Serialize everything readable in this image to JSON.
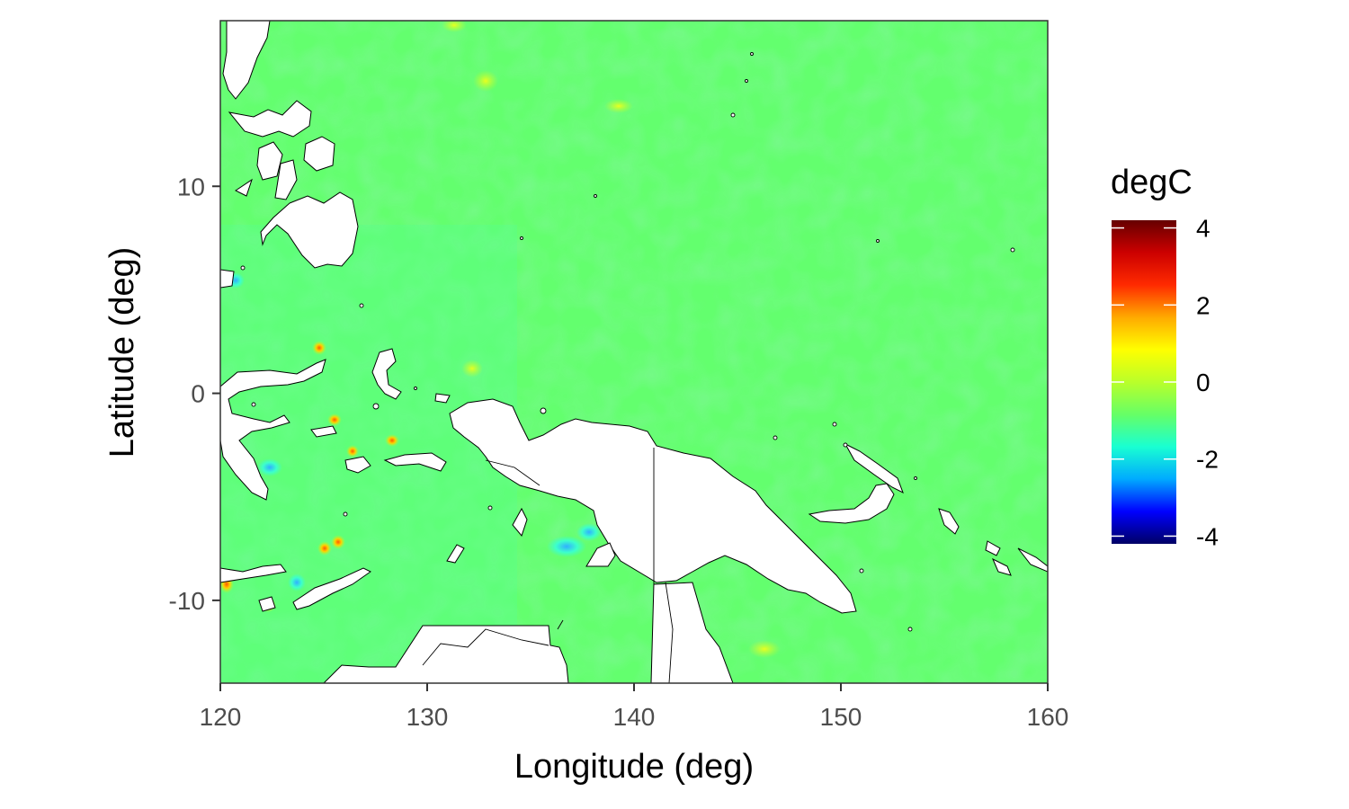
{
  "chart_data": {
    "type": "heatmap",
    "title": "",
    "xlabel": "Longitude (deg)",
    "ylabel": "Latitude (deg)",
    "xlim": [
      120,
      160
    ],
    "ylim": [
      -14,
      18
    ],
    "x_ticks": [
      120,
      130,
      140,
      150,
      160
    ],
    "x_tick_labels": [
      "120",
      "130",
      "140",
      "150",
      "160"
    ],
    "y_ticks": [
      -10,
      0,
      10
    ],
    "y_tick_labels": [
      "-10",
      "0",
      "10"
    ],
    "grid": false,
    "legend": {
      "title": "degC",
      "position": "right",
      "range": [
        -4.2,
        4.2
      ],
      "ticks": [
        4,
        2,
        0,
        -2,
        -4
      ],
      "tick_labels": [
        "4",
        "2",
        "0",
        "-2",
        "-4"
      ],
      "palette": [
        "#000066",
        "#0000ff",
        "#00aaff",
        "#19ffd2",
        "#66ff66",
        "#b9ff2a",
        "#ffff00",
        "#ffaa00",
        "#ff2a00",
        "#cc0000",
        "#660000"
      ]
    },
    "field_description": "Sea temperature anomaly mostly near 0 degC (green) with small-scale variation between about -1.5 and +2.5 degC, strongest near the Indonesian archipelago",
    "land_color": "#ffffff",
    "coast_color": "#000000"
  }
}
